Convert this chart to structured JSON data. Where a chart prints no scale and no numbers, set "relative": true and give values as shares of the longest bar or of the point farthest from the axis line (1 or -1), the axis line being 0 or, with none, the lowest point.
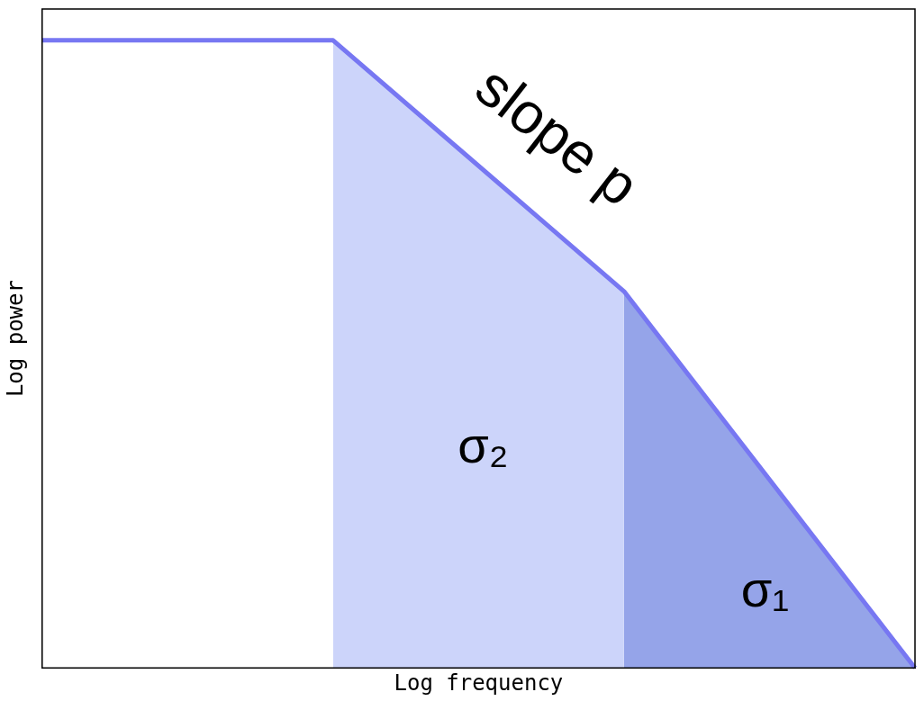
{
  "chart_data": {
    "type": "line",
    "relative": true,
    "xlabel": "Log frequency",
    "ylabel": "Log power",
    "categories": [
      null,
      null,
      null,
      null
    ],
    "legend": false,
    "grid": false,
    "tick_labels": false,
    "marker": "none",
    "series": [
      {
        "type": "area",
        "color": "#ccd4fa",
        "values": [
          null,
          1,
          0.6,
          null
        ]
      },
      {
        "type": "area",
        "color": "#95a4e9",
        "values": [
          null,
          null,
          0.6,
          0
        ]
      },
      {
        "color": "#7777f2",
        "values": [
          1,
          1,
          0.6,
          0
        ]
      }
    ],
    "annotations": [
      "slope p",
      "σ₂",
      "σ₁"
    ]
  }
}
